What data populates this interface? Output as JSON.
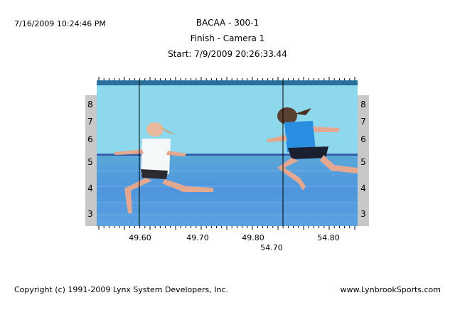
{
  "header": {
    "timestamp": "7/16/2009 10:24:46 PM",
    "title": "BACAA - 300-1",
    "subtitle": "Finish - Camera 1",
    "start": "Start: 7/9/2009 20:26:33.44"
  },
  "lanes": {
    "left": [
      "8",
      "7",
      "6",
      "5",
      "4",
      "3"
    ],
    "right": [
      "8",
      "7",
      "6",
      "5",
      "4",
      "3"
    ]
  },
  "time_labels": [
    "49.60",
    "49.70",
    "49.80",
    "54.80"
  ],
  "cursor_label": "54.70",
  "footer": {
    "copyright": "Copyright (c) 1991-2009 Lynx System Developers, Inc.",
    "website": "www.LynbrookSports.com"
  }
}
